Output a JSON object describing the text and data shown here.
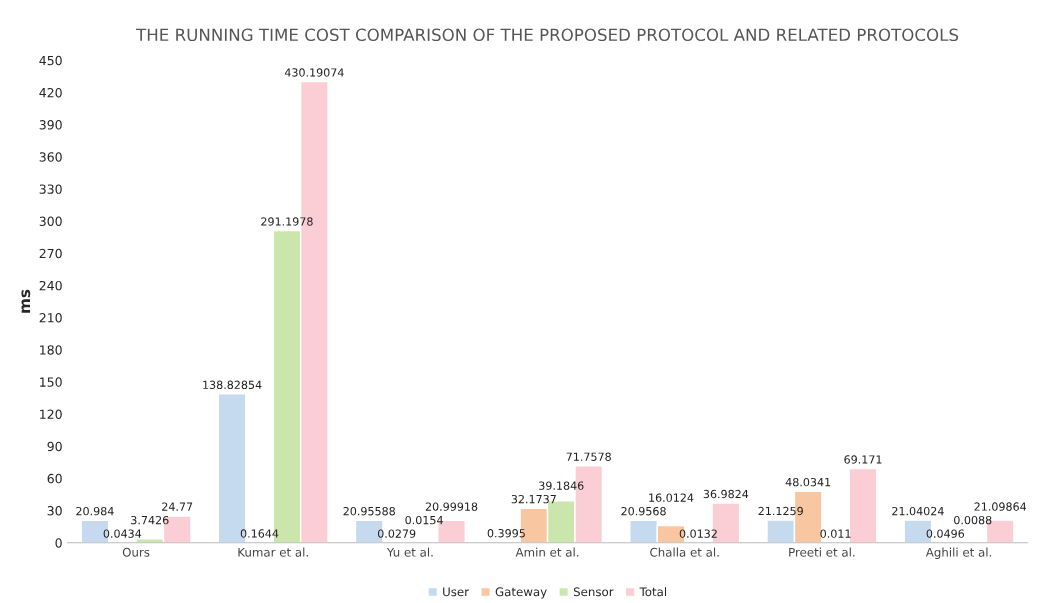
{
  "chart_data": {
    "type": "bar",
    "title": "THE RUNNING TIME COST COMPARISON OF THE PROPOSED PROTOCOL AND RELATED PROTOCOLS",
    "ylabel": "ms",
    "categories": [
      "Ours",
      "Kumar et al.",
      "Yu et al.",
      "Amin et al.",
      "Challa et al.",
      "Preeti et al.",
      "Aghili et al."
    ],
    "series": [
      {
        "name": "User",
        "color": "#c5d9ef",
        "values": [
          20.984,
          138.82854,
          20.95588,
          0.3995,
          20.9568,
          21.1259,
          21.04024
        ]
      },
      {
        "name": "Gateway",
        "color": "#f8c7a2",
        "values": [
          0.0434,
          0.1644,
          0.0279,
          32.1737,
          16.0124,
          48.0341,
          0.0496
        ]
      },
      {
        "name": "Sensor",
        "color": "#cbe6ab",
        "values": [
          3.7426,
          291.1978,
          0.0154,
          39.1846,
          0.0132,
          0.011,
          0.0088
        ]
      },
      {
        "name": "Total",
        "color": "#fbcdd5",
        "values": [
          24.77,
          430.19074,
          20.99918,
          71.7578,
          36.9824,
          69.171,
          21.09864
        ]
      }
    ],
    "ylim": [
      0,
      450
    ],
    "yticks": [
      0,
      30,
      60,
      90,
      120,
      150,
      180,
      210,
      240,
      270,
      300,
      330,
      360,
      390,
      420,
      450
    ],
    "data_labels": true,
    "grid": false,
    "legend": "bottom"
  }
}
